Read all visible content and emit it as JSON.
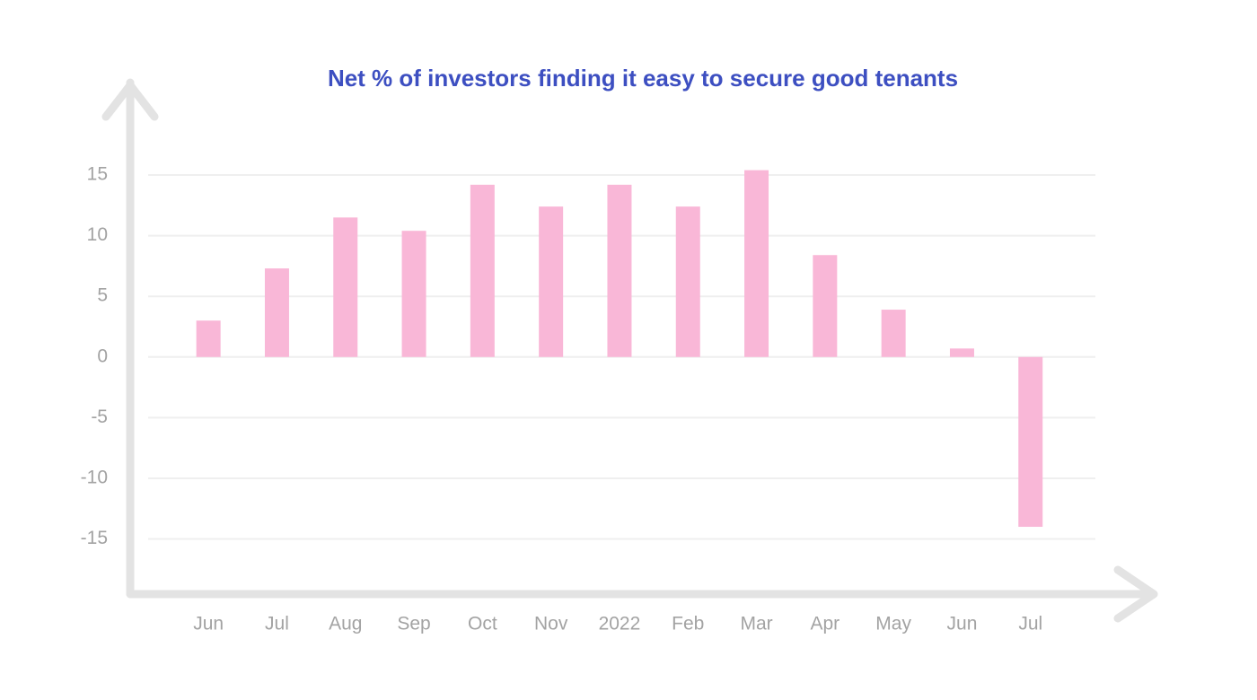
{
  "chart_data": {
    "type": "bar",
    "title": "Net % of investors finding it easy to secure good tenants",
    "categories": [
      "Jun",
      "Jul",
      "Aug",
      "Sep",
      "Oct",
      "Nov",
      "2022",
      "Feb",
      "Mar",
      "Apr",
      "May",
      "Jun",
      "Jul"
    ],
    "values": [
      3,
      7.3,
      11.5,
      10.4,
      14.2,
      12.4,
      14.2,
      12.4,
      15.4,
      8.4,
      3.9,
      0.7,
      -14
    ],
    "color": "#f9b7d7",
    "ylim": [
      -19.4,
      22.4
    ],
    "yticks": [
      -15,
      -10,
      -5,
      0,
      5,
      10,
      15
    ],
    "grid": true
  }
}
